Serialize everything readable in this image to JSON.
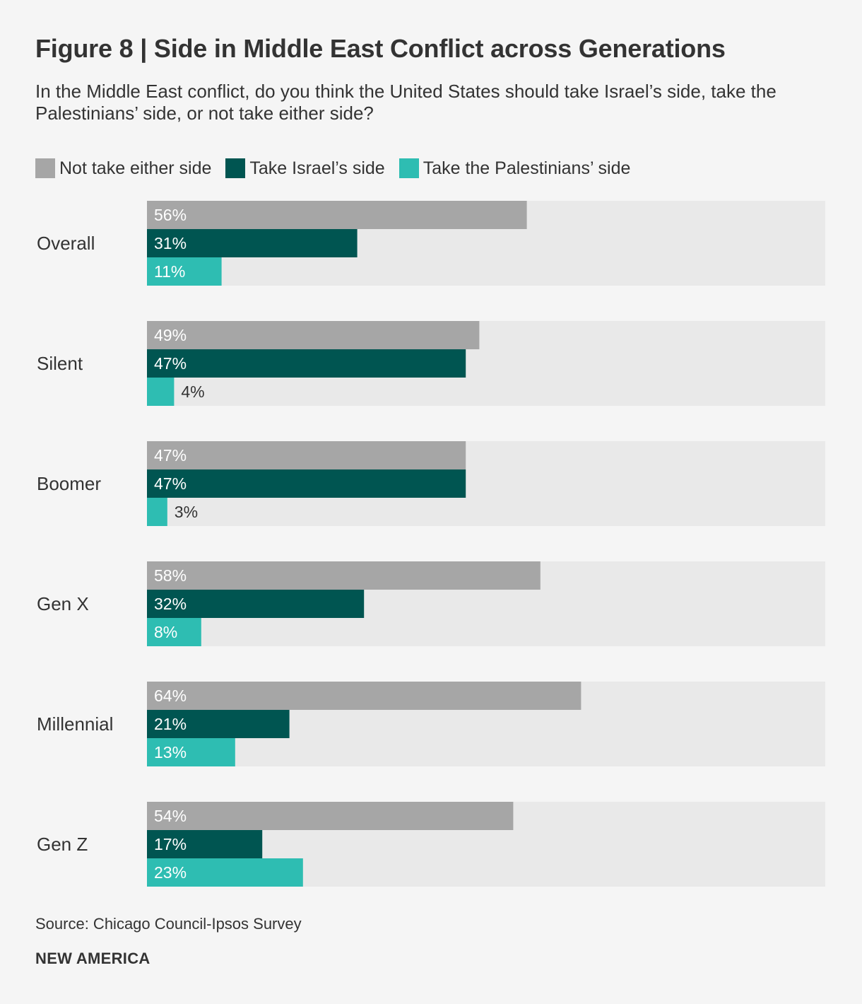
{
  "title": "Figure 8 | Side in Middle East Conflict across Generations",
  "subtitle": "In the Middle East conflict, do you think the United States should take Israel’s side, take the Palestinians’ side, or not take either side?",
  "source": "Source: Chicago Council-Ipsos Survey",
  "brand": "NEW AMERICA",
  "chart_data": {
    "type": "bar",
    "orientation": "horizontal",
    "title": "Figure 8 | Side in Middle East Conflict across Generations",
    "xlabel": "",
    "ylabel": "",
    "xlim": [
      0,
      100
    ],
    "unit": "%",
    "grid": false,
    "legend_position": "top-left",
    "categories": [
      "Overall",
      "Silent",
      "Boomer",
      "Gen X",
      "Millennial",
      "Gen Z"
    ],
    "series": [
      {
        "name": "Not take either side",
        "color": "#a6a6a6",
        "values": [
          56,
          49,
          47,
          58,
          64,
          54
        ]
      },
      {
        "name": "Take Israel’s side",
        "color": "#005551",
        "values": [
          31,
          47,
          47,
          32,
          21,
          17
        ]
      },
      {
        "name": "Take the Palestinians’ side",
        "color": "#2ebdb2",
        "values": [
          11,
          4,
          3,
          8,
          13,
          23
        ]
      }
    ],
    "background_track_color": "#e9e9e9"
  }
}
